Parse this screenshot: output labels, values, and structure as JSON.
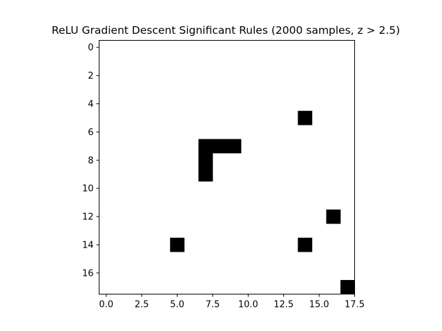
{
  "chart_data": {
    "type": "heatmap",
    "title": "ReLU Gradient Descent Significant Rules (2000 samples, z > 2.5)",
    "colormap": {
      "zero": "#ffffff",
      "one": "#000000"
    },
    "rows": 18,
    "cols": 18,
    "xlim": [
      -0.5,
      17.5
    ],
    "ylim": [
      17.5,
      -0.5
    ],
    "x_ticks": [
      0.0,
      2.5,
      5.0,
      7.5,
      10.0,
      12.5,
      15.0,
      17.5
    ],
    "x_tick_labels": [
      "0.0",
      "2.5",
      "5.0",
      "7.5",
      "10.0",
      "12.5",
      "15.0",
      "17.5"
    ],
    "y_ticks": [
      0,
      2,
      4,
      6,
      8,
      10,
      12,
      14,
      16
    ],
    "y_tick_labels": [
      "0",
      "2",
      "4",
      "6",
      "8",
      "10",
      "12",
      "14",
      "16"
    ],
    "cells_on": [
      {
        "row": 5,
        "col": 14
      },
      {
        "row": 7,
        "col": 7
      },
      {
        "row": 7,
        "col": 8
      },
      {
        "row": 7,
        "col": 9
      },
      {
        "row": 8,
        "col": 7
      },
      {
        "row": 9,
        "col": 7
      },
      {
        "row": 12,
        "col": 16
      },
      {
        "row": 14,
        "col": 5
      },
      {
        "row": 14,
        "col": 14
      },
      {
        "row": 17,
        "col": 17
      }
    ]
  }
}
